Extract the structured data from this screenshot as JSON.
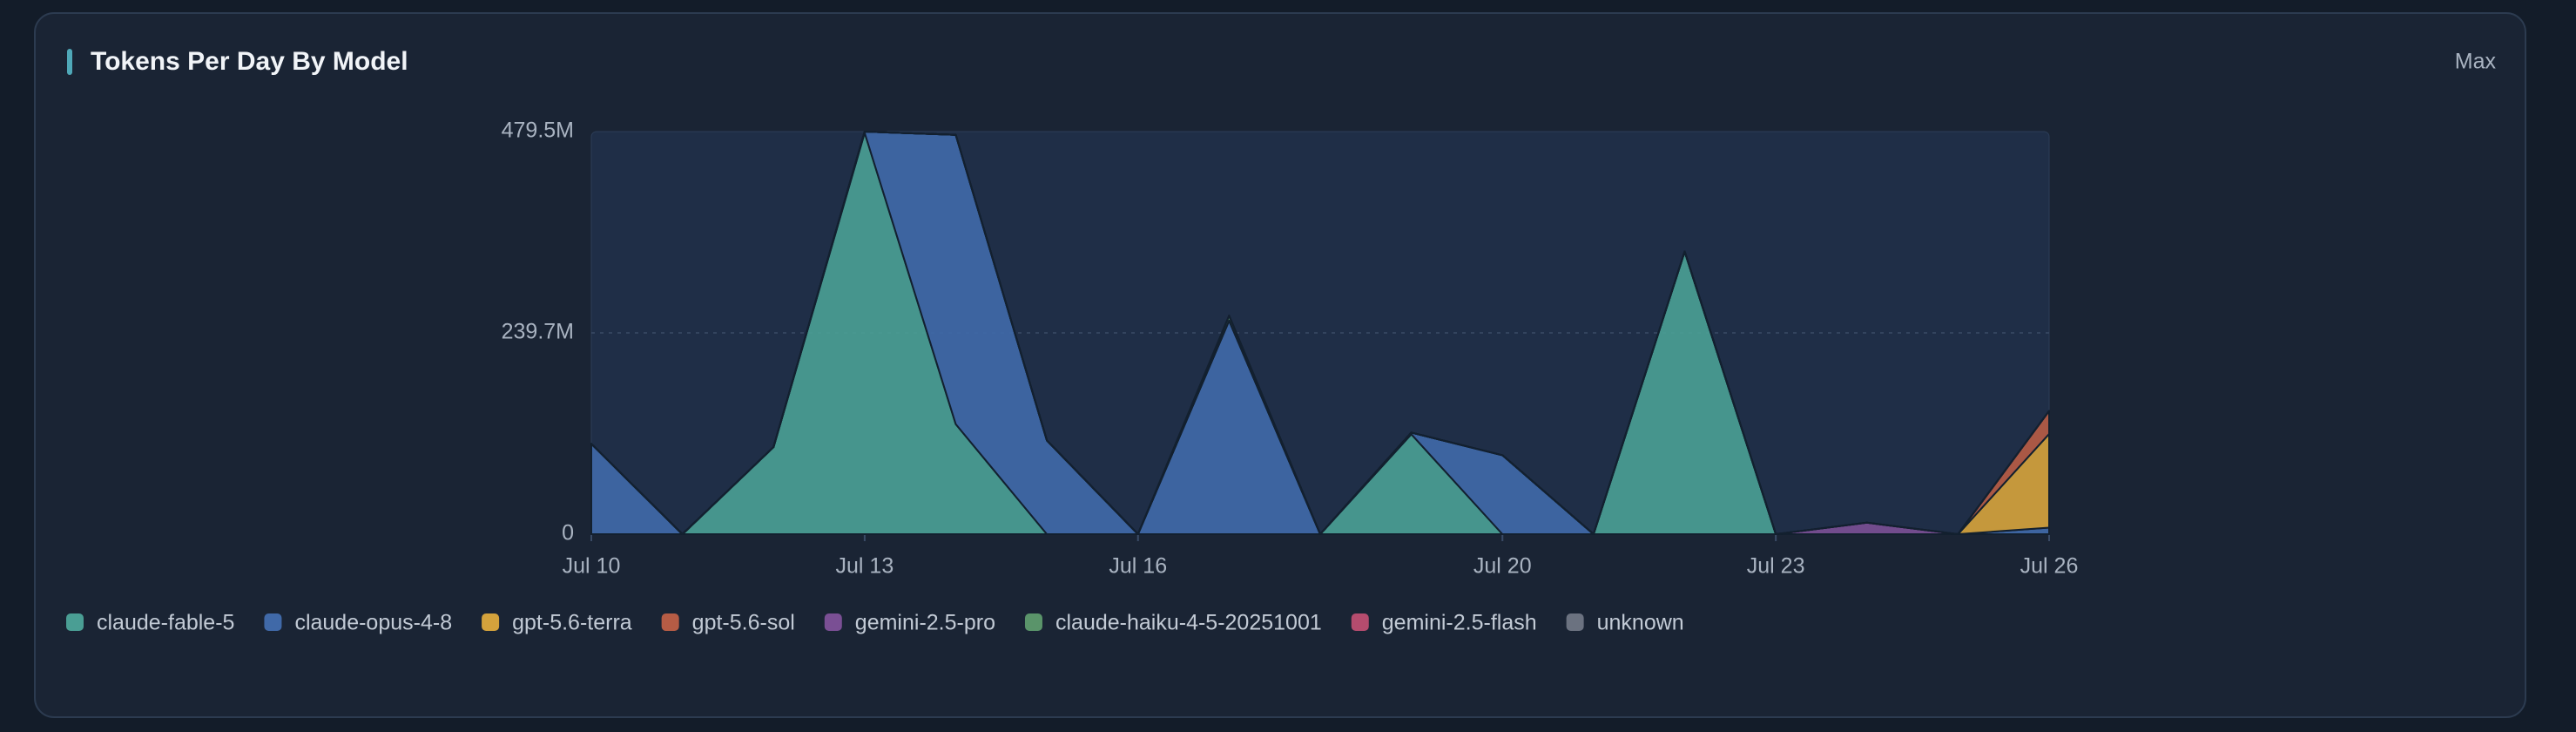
{
  "header": {
    "title": "Tokens Per Day By Model",
    "range_button": "Max"
  },
  "chart_data": {
    "type": "stacked-area",
    "x": [
      "Jul 10",
      "Jul 11",
      "Jul 12",
      "Jul 13",
      "Jul 14",
      "Jul 15",
      "Jul 16",
      "Jul 17",
      "Jul 18",
      "Jul 19",
      "Jul 20",
      "Jul 21",
      "Jul 22",
      "Jul 23",
      "Jul 24",
      "Jul 25",
      "Jul 26"
    ],
    "xticks": [
      "Jul 10",
      "Jul 13",
      "Jul 16",
      "Jul 20",
      "Jul 23",
      "Jul 26"
    ],
    "ylim": [
      0,
      479.5
    ],
    "yticks": [
      {
        "value": 0,
        "label": "0"
      },
      {
        "value": 239.7,
        "label": "239.7M"
      },
      {
        "value": 479.5,
        "label": "479.5M"
      }
    ],
    "grid": true,
    "series": [
      {
        "name": "claude-fable-5",
        "color": "#4a9e94",
        "values": [
          0,
          0,
          103.7,
          478,
          131,
          0,
          0,
          0,
          0,
          119,
          0,
          0,
          336.6,
          0,
          0,
          0,
          0
        ]
      },
      {
        "name": "claude-opus-4-8",
        "color": "#4069a8",
        "values": [
          107.6,
          0,
          0,
          1.5,
          344.6,
          111.6,
          0,
          254.4,
          0,
          2,
          94,
          0,
          0,
          0,
          0,
          0,
          7.8
        ]
      },
      {
        "name": "gpt-5.6-terra",
        "color": "#d4a23c",
        "values": [
          0,
          0,
          0,
          0,
          0,
          0,
          0,
          0,
          0,
          0,
          0,
          0,
          0,
          0,
          0,
          0,
          111.6
        ]
      },
      {
        "name": "gpt-5.6-sol",
        "color": "#b65c45",
        "values": [
          0,
          0,
          0,
          0,
          0,
          0,
          0,
          0,
          0,
          0,
          0,
          0,
          0,
          0,
          0,
          0,
          27.4
        ]
      },
      {
        "name": "gemini-2.5-pro",
        "color": "#7a4f94",
        "values": [
          0,
          0,
          0,
          0,
          0,
          0,
          0,
          0,
          0,
          0,
          0,
          0,
          0,
          0,
          13.7,
          0,
          0
        ]
      },
      {
        "name": "claude-haiku-4-5-20251001",
        "color": "#5a946a",
        "values": [
          0,
          0,
          0,
          0,
          0,
          0,
          0,
          5.9,
          0,
          0,
          0,
          0,
          0,
          0,
          0,
          0,
          0
        ]
      },
      {
        "name": "gemini-2.5-flash",
        "color": "#b54c6e",
        "values": [
          0,
          0,
          0,
          0,
          0,
          0,
          0,
          0,
          0,
          0,
          0,
          0,
          0,
          0,
          0,
          0,
          0
        ]
      },
      {
        "name": "unknown",
        "color": "#6b7280",
        "values": [
          0,
          0,
          0,
          0,
          0,
          0,
          0,
          0,
          0,
          0,
          0,
          0,
          0,
          0,
          0,
          0,
          0
        ]
      }
    ]
  }
}
